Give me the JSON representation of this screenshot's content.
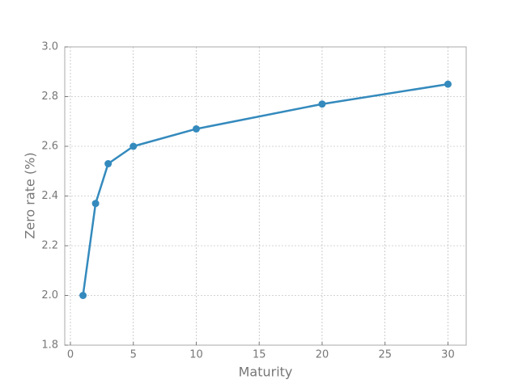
{
  "chart_data": {
    "type": "line",
    "xlabel": "Maturity",
    "ylabel": "Zero rate (%)",
    "x": [
      1,
      2,
      3,
      5,
      10,
      20,
      30
    ],
    "series": [
      {
        "name": "Zero rate",
        "color": "#348abd",
        "values": [
          2.0,
          2.37,
          2.53,
          2.6,
          2.67,
          2.77,
          2.85
        ]
      }
    ],
    "xlim": [
      -0.45,
      31.45
    ],
    "ylim": [
      1.8,
      3.0
    ],
    "xticks": [
      0,
      5,
      10,
      15,
      20,
      25,
      30
    ],
    "yticks": [
      1.8,
      {
        "value": 2.0,
        "label": "2.0"
      },
      2.2,
      2.4,
      2.6,
      2.8,
      {
        "value": 3.0,
        "label": "3.0"
      }
    ],
    "grid": true
  }
}
